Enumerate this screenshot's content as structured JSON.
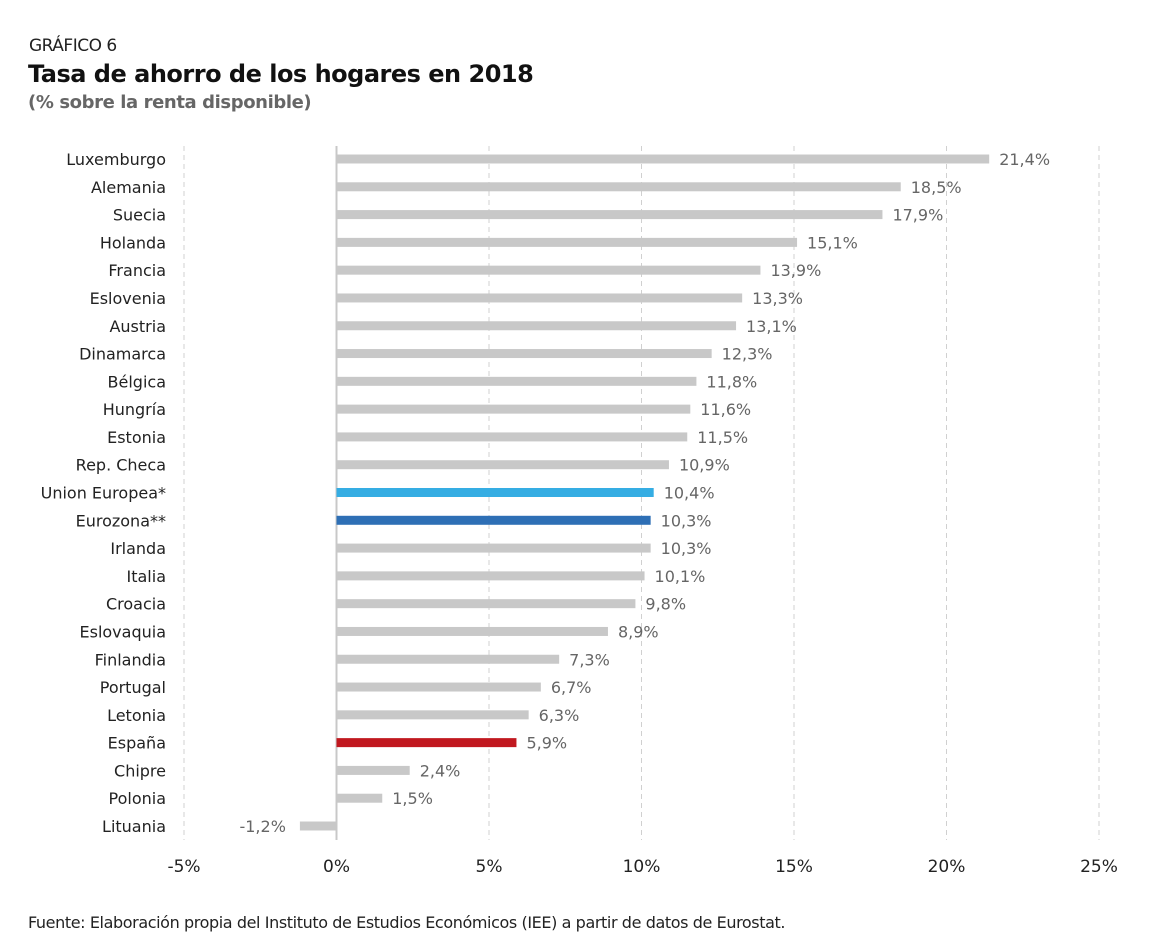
{
  "header": {
    "kicker": "GRÁFICO 6",
    "title": "Tasa de ahorro de los hogares en 2018",
    "subtitle": "(% sobre la renta disponible)"
  },
  "footer": {
    "source": "Fuente: Elaboración propia del Instituto de Estudios Económicos (IEE) a partir de datos de Eurostat."
  },
  "chart_data": {
    "type": "bar",
    "orientation": "horizontal",
    "title": "Tasa de ahorro de los hogares en 2018",
    "subtitle": "(% sobre la renta disponible)",
    "xlim": [
      -5,
      25
    ],
    "xticks": [
      -5,
      0,
      5,
      10,
      15,
      20,
      25
    ],
    "xtick_labels": [
      "-5%",
      "0%",
      "5%",
      "10%",
      "15%",
      "20%",
      "25%"
    ],
    "grid": "vertical dashed",
    "categories": [
      "Luxemburgo",
      "Alemania",
      "Suecia",
      "Holanda",
      "Francia",
      "Eslovenia",
      "Austria",
      "Dinamarca",
      "Bélgica",
      "Hungría",
      "Estonia",
      "Rep. Checa",
      "Union Europea*",
      "Eurozona**",
      "Irlanda",
      "Italia",
      "Croacia",
      "Eslovaquia",
      "Finlandia",
      "Portugal",
      "Letonia",
      "España",
      "Chipre",
      "Polonia",
      "Lituania"
    ],
    "values": [
      21.4,
      18.5,
      17.9,
      15.1,
      13.9,
      13.3,
      13.1,
      12.3,
      11.8,
      11.6,
      11.5,
      10.9,
      10.4,
      10.3,
      10.3,
      10.1,
      9.8,
      8.9,
      7.3,
      6.7,
      6.3,
      5.9,
      2.4,
      1.5,
      -1.2
    ],
    "value_labels": [
      "21,4%",
      "18,5%",
      "17,9%",
      "15,1%",
      "13,9%",
      "13,3%",
      "13,1%",
      "12,3%",
      "11,8%",
      "11,6%",
      "11,5%",
      "10,9%",
      "10,4%",
      "10,3%",
      "10,3%",
      "10,1%",
      "9,8%",
      "8,9%",
      "7,3%",
      "6,7%",
      "6,3%",
      "5,9%",
      "2,4%",
      "1,5%",
      "-1,2%"
    ],
    "colors": {
      "default": "#c8c8c8",
      "Union Europea*": "#35ade3",
      "Eurozona**": "#2e6fb5",
      "España": "#c1181f"
    }
  }
}
